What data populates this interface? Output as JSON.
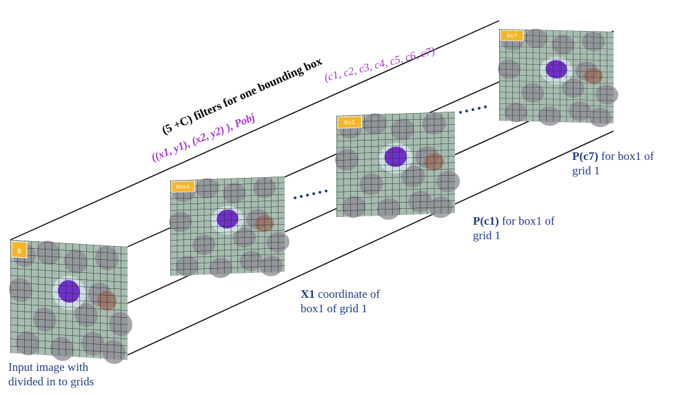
{
  "title": "(5 +C) filters for one bounding box",
  "annotations": {
    "coords": "((x1, y1), (x2, y2) ), Pobj",
    "classes": "(c1,   c2, c3, c4, c5, c6,  c7)"
  },
  "panels": [
    {
      "tag": "B"
    },
    {
      "tag": "Box1"
    },
    {
      "tag": "Bc1"
    },
    {
      "tag": "Bc7"
    }
  ],
  "captions": [
    {
      "lines": [
        "Input image with",
        "divided in to grids"
      ]
    },
    {
      "bold": "X1",
      "lines": [
        " coordinate of",
        "box1 of grid 1"
      ]
    },
    {
      "bold": "P(c1)",
      "lines": [
        " for  box1 of",
        "grid 1"
      ]
    },
    {
      "bold": "P(c7)",
      "lines": [
        " for box1 of",
        "grid 1"
      ]
    }
  ]
}
